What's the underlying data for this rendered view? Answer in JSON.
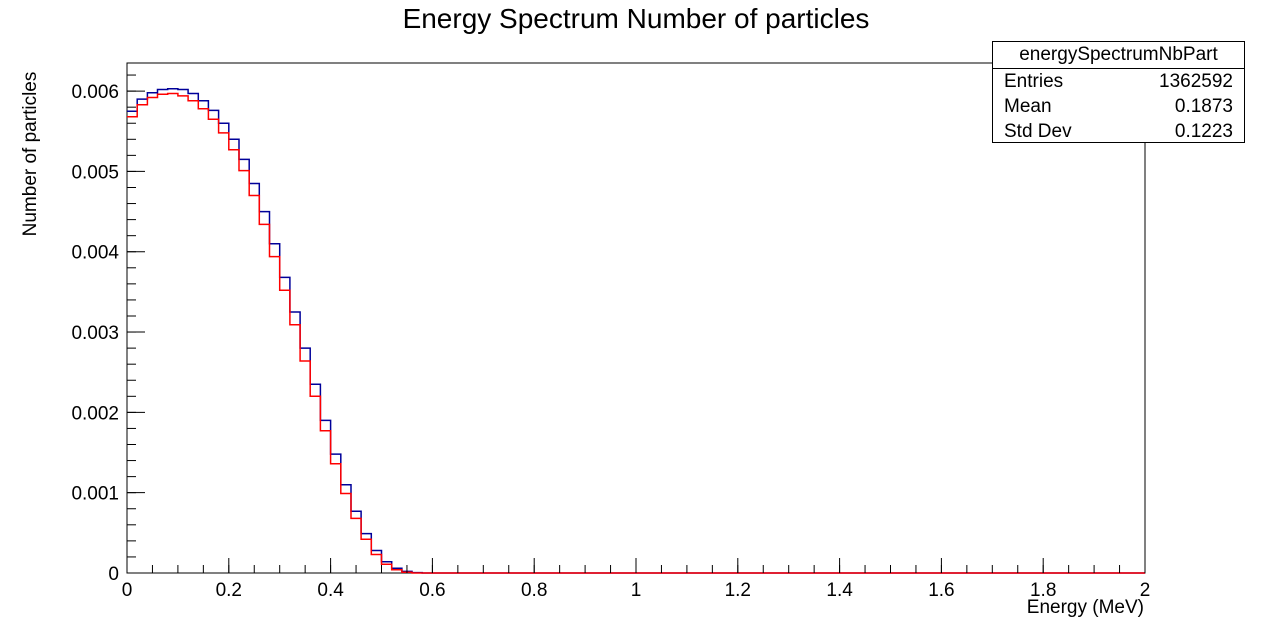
{
  "chart_data": {
    "type": "line",
    "title": "Energy Spectrum Number of particles",
    "xlabel": "Energy (MeV)",
    "ylabel": "Number of particles",
    "xlim": [
      0,
      2
    ],
    "ylim": [
      0,
      0.00635
    ],
    "x_ticks": [
      "0",
      "0.2",
      "0.4",
      "0.6",
      "0.8",
      "1",
      "1.2",
      "1.4",
      "1.6",
      "1.8",
      "2"
    ],
    "y_ticks": [
      "0",
      "0.001",
      "0.002",
      "0.003",
      "0.004",
      "0.005",
      "0.006"
    ],
    "grid": false,
    "series": [
      {
        "style": "step",
        "color": "#000099",
        "x": [
          0.0,
          0.02,
          0.04,
          0.06,
          0.08,
          0.1,
          0.12,
          0.14,
          0.16,
          0.18,
          0.2,
          0.22,
          0.24,
          0.26,
          0.28,
          0.3,
          0.32,
          0.34,
          0.36,
          0.38,
          0.4,
          0.42,
          0.44,
          0.46,
          0.48,
          0.5,
          0.52,
          0.54,
          0.56,
          0.58,
          0.6,
          2.0
        ],
        "y": [
          0.00575,
          0.0059,
          0.00598,
          0.00602,
          0.00603,
          0.00602,
          0.00597,
          0.00588,
          0.00576,
          0.0056,
          0.0054,
          0.00515,
          0.00485,
          0.0045,
          0.0041,
          0.00368,
          0.00325,
          0.0028,
          0.00235,
          0.0019,
          0.00148,
          0.0011,
          0.00077,
          0.00049,
          0.00028,
          0.00014,
          6e-05,
          2e-05,
          5e-06,
          0.0,
          0.0,
          0.0
        ]
      },
      {
        "style": "step",
        "color": "#ff0000",
        "x": [
          0.0,
          0.02,
          0.04,
          0.06,
          0.08,
          0.1,
          0.12,
          0.14,
          0.16,
          0.18,
          0.2,
          0.22,
          0.24,
          0.26,
          0.28,
          0.3,
          0.32,
          0.34,
          0.36,
          0.38,
          0.4,
          0.42,
          0.44,
          0.46,
          0.48,
          0.5,
          0.52,
          0.54,
          0.56,
          0.58,
          0.6,
          2.0
        ],
        "y": [
          0.00568,
          0.00583,
          0.00592,
          0.00596,
          0.00597,
          0.00594,
          0.00588,
          0.00578,
          0.00565,
          0.00548,
          0.00527,
          0.00501,
          0.0047,
          0.00434,
          0.00394,
          0.00352,
          0.00309,
          0.00264,
          0.0022,
          0.00177,
          0.00136,
          0.00099,
          0.00068,
          0.00042,
          0.00023,
          0.00011,
          4e-05,
          1e-05,
          0.0,
          0.0,
          0.0,
          0.0
        ]
      }
    ]
  },
  "stats_box": {
    "name": "energySpectrumNbPart",
    "entries_label": "Entries",
    "entries_value": "1362592",
    "mean_label": "Mean",
    "mean_value": "0.1873",
    "stddev_label": "Std Dev",
    "stddev_value": "0.1223"
  }
}
